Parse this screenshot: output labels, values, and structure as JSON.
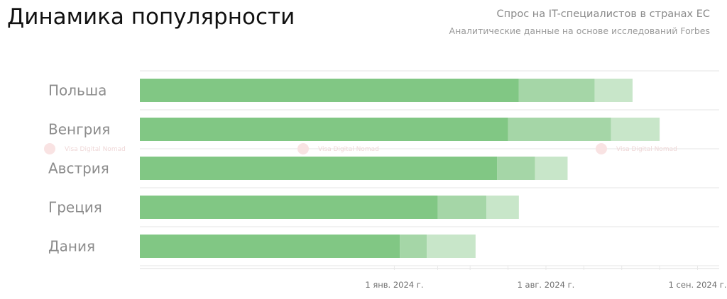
{
  "header": {
    "title": "Динамика популярности",
    "subtitle": "Спрос на IT-специалистов в странах ЕС",
    "source": "Аналитические данные на основе исследований Forbes"
  },
  "watermark": {
    "text": "Visa Digital Nomad",
    "icon": "heart-logo-icon"
  },
  "colors": {
    "primary": "#81c784",
    "secondary": "#a5d6a7",
    "tertiary": "#c8e6c9",
    "grid": "#e6e6e6"
  },
  "chart_data": {
    "type": "bar",
    "orientation": "horizontal",
    "stacked": true,
    "categories": [
      "Польша",
      "Венгрия",
      "Австрия",
      "Греция",
      "Дания"
    ],
    "series": [
      {
        "values": [
          0.7,
          0.68,
          0.66,
          0.55,
          0.48
        ]
      },
      {
        "values": [
          0.14,
          0.19,
          0.07,
          0.09,
          0.05
        ]
      },
      {
        "values": [
          0.07,
          0.09,
          0.06,
          0.06,
          0.09
        ]
      }
    ],
    "x_ticks": [
      "1 янв. 2024 г.",
      "1 авг. 2024 г.",
      "1 сен. 2024 г."
    ],
    "x_tick_values": [
      0.47,
      0.75,
      1.03
    ],
    "xlim": [
      0,
      1.07
    ],
    "grid": true
  }
}
